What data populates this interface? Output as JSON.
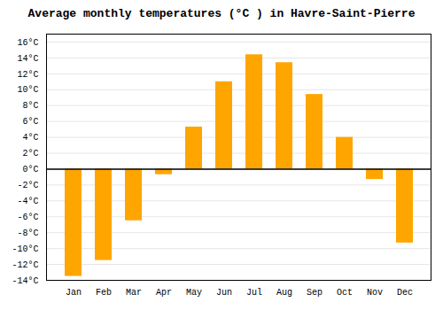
{
  "chart_data": {
    "type": "bar",
    "title": "Average monthly temperatures (°C ) in Havre-Saint-Pierre",
    "categories": [
      "Jan",
      "Feb",
      "Mar",
      "Apr",
      "May",
      "Jun",
      "Jul",
      "Aug",
      "Sep",
      "Oct",
      "Nov",
      "Dec"
    ],
    "values": [
      -13.5,
      -11.5,
      -6.5,
      -0.7,
      5.3,
      11.0,
      14.4,
      13.4,
      9.4,
      4.0,
      -1.3,
      -9.3
    ],
    "color": "#FFA500",
    "ylim": [
      -14,
      17
    ],
    "yticks": [
      {
        "value": -14,
        "label": "-14°C"
      },
      {
        "value": -12,
        "label": "-12°C"
      },
      {
        "value": -10,
        "label": "-10°C"
      },
      {
        "value": -8,
        "label": "-8°C"
      },
      {
        "value": -6,
        "label": "-6°C"
      },
      {
        "value": -4,
        "label": "-4°C"
      },
      {
        "value": -2,
        "label": "-2°C"
      },
      {
        "value": 0,
        "label": "0°C"
      },
      {
        "value": 2,
        "label": "2°C"
      },
      {
        "value": 4,
        "label": "4°C"
      },
      {
        "value": 6,
        "label": "6°C"
      },
      {
        "value": 8,
        "label": "8°C"
      },
      {
        "value": 10,
        "label": "10°C"
      },
      {
        "value": 12,
        "label": "12°C"
      },
      {
        "value": 14,
        "label": "14°C"
      },
      {
        "value": 16,
        "label": "16°C"
      }
    ],
    "grid": true
  }
}
